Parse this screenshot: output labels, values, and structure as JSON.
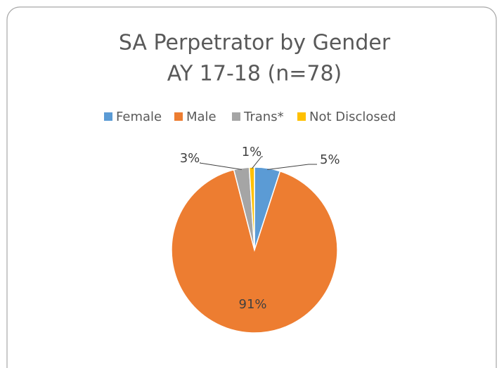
{
  "chart_data": {
    "type": "pie",
    "title": "SA Perpetrator by Gender",
    "subtitle": "AY 17-18 (n=78)",
    "categories": [
      "Female",
      "Male",
      "Trans*",
      "Not Disclosed"
    ],
    "values": [
      5,
      91,
      3,
      1
    ],
    "value_labels": [
      "5%",
      "91%",
      "3%",
      "1%"
    ],
    "colors": [
      "#5b9bd5",
      "#ed7d31",
      "#a5a5a5",
      "#ffc000"
    ],
    "legend": "top"
  }
}
